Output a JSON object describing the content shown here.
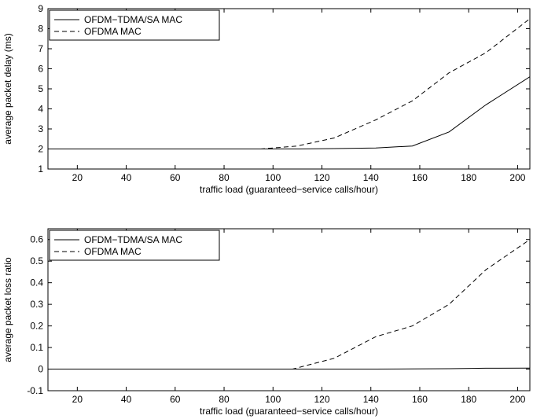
{
  "chart_data": [
    {
      "type": "line",
      "xlabel": "traffic load (guaranteed−service calls/hour)",
      "ylabel": "average packet delay (ms)",
      "xlim": [
        8,
        205
      ],
      "ylim": [
        1,
        9
      ],
      "xticks": [
        20,
        40,
        60,
        80,
        100,
        120,
        140,
        160,
        180,
        200
      ],
      "yticks": [
        1,
        2,
        3,
        4,
        5,
        6,
        7,
        8,
        9
      ],
      "legend_position": "top-left",
      "grid": false,
      "series": [
        {
          "name": "OFDM−TDMA/SA MAC",
          "style": "solid",
          "x": [
            8,
            95,
            110,
            125,
            142,
            157,
            172,
            187,
            205
          ],
          "y": [
            2.0,
            2.0,
            2.0,
            2.02,
            2.05,
            2.15,
            2.85,
            4.2,
            5.6
          ]
        },
        {
          "name": "OFDMA MAC",
          "style": "dashed",
          "x": [
            8,
            95,
            110,
            125,
            142,
            157,
            172,
            187,
            205
          ],
          "y": [
            2.0,
            2.0,
            2.15,
            2.55,
            3.45,
            4.4,
            5.8,
            6.8,
            8.5
          ]
        }
      ]
    },
    {
      "type": "line",
      "xlabel": "traffic load (guaranteed−service calls/hour)",
      "ylabel": "average packet loss ratio",
      "xlim": [
        8,
        205
      ],
      "ylim": [
        -0.1,
        0.65
      ],
      "xticks": [
        20,
        40,
        60,
        80,
        100,
        120,
        140,
        160,
        180,
        200
      ],
      "yticks": [
        -0.1,
        0,
        0.1,
        0.2,
        0.3,
        0.4,
        0.5,
        0.6
      ],
      "legend_position": "top-left",
      "grid": false,
      "series": [
        {
          "name": "OFDM−TDMA/SA MAC",
          "style": "solid",
          "x": [
            8,
            108,
            125,
            142,
            157,
            172,
            187,
            205
          ],
          "y": [
            0.0,
            0.0,
            0.0,
            0.0,
            0.001,
            0.002,
            0.004,
            0.005
          ]
        },
        {
          "name": "OFDMA MAC",
          "style": "dashed",
          "x": [
            8,
            108,
            125,
            142,
            157,
            172,
            187,
            205
          ],
          "y": [
            0.0,
            0.0,
            0.05,
            0.15,
            0.2,
            0.3,
            0.46,
            0.6
          ]
        }
      ]
    }
  ]
}
